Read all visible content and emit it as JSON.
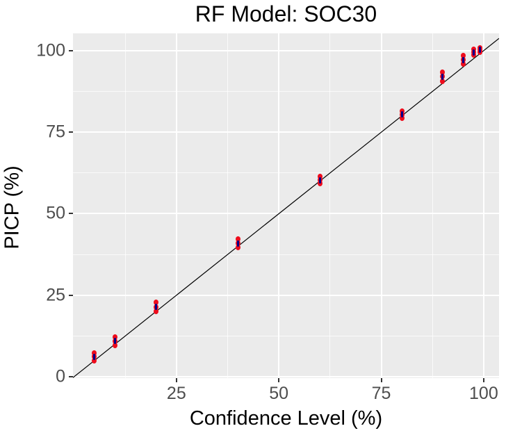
{
  "chart_data": {
    "type": "scatter",
    "title": "RF Model: SOC30",
    "xlabel": "Confidence Level (%)",
    "ylabel": "PICP (%)",
    "xlim": [
      -0.25,
      103.75
    ],
    "ylim": [
      -0.4,
      105.3
    ],
    "x_ticks": [
      "25",
      "50",
      "75",
      "100"
    ],
    "x_tick_values": [
      25,
      50,
      75,
      100
    ],
    "y_ticks": [
      "0",
      "25",
      "50",
      "75",
      "100"
    ],
    "y_tick_values": [
      0,
      25,
      50,
      75,
      100
    ],
    "x_minor": [
      12.5,
      37.5,
      62.5,
      87.5
    ],
    "y_minor": [
      12.5,
      37.5,
      62.5,
      87.5
    ],
    "grid": "on",
    "legend": "none",
    "reference_line": {
      "type": "identity",
      "slope": 1,
      "intercept": 0,
      "color": "#000000"
    },
    "series": [
      {
        "name": "picp-runs",
        "marker": "circle",
        "color": "#EE0C1C",
        "points": [
          [
            5,
            4.9
          ],
          [
            5,
            6.1
          ],
          [
            5,
            7.3
          ],
          [
            10,
            9.6
          ],
          [
            10,
            10.9
          ],
          [
            10,
            12.2
          ],
          [
            20,
            20.0
          ],
          [
            20,
            21.4
          ],
          [
            20,
            22.8
          ],
          [
            40,
            39.6
          ],
          [
            40,
            40.9
          ],
          [
            40,
            42.2
          ],
          [
            60,
            59.2
          ],
          [
            60,
            60.3
          ],
          [
            60,
            61.4
          ],
          [
            80,
            79.3
          ],
          [
            80,
            80.4
          ],
          [
            80,
            81.5
          ],
          [
            90,
            90.7
          ],
          [
            90,
            92.0
          ],
          [
            90,
            93.3
          ],
          [
            95,
            95.9
          ],
          [
            95,
            97.2
          ],
          [
            95,
            98.5
          ],
          [
            97.5,
            98.7
          ],
          [
            97.5,
            99.5
          ],
          [
            97.5,
            100.3
          ],
          [
            99,
            99.6
          ],
          [
            99,
            100.2
          ],
          [
            99,
            100.8
          ]
        ]
      },
      {
        "name": "picp-mean",
        "marker": "vdash",
        "color": "#00008B",
        "points": [
          [
            5,
            6.1
          ],
          [
            10,
            10.9
          ],
          [
            20,
            21.4
          ],
          [
            40,
            40.9
          ],
          [
            60,
            60.3
          ],
          [
            80,
            80.4
          ],
          [
            90,
            92.0
          ],
          [
            95,
            97.2
          ],
          [
            97.5,
            99.5
          ],
          [
            99,
            100.2
          ]
        ]
      }
    ],
    "colors": {
      "panel_bg": "#EBEBEB",
      "grid": "#FFFFFF",
      "tick_mark": "#333333",
      "tick_label": "#4D4D4D",
      "axis_title": "#000000",
      "title": "#000000"
    }
  }
}
